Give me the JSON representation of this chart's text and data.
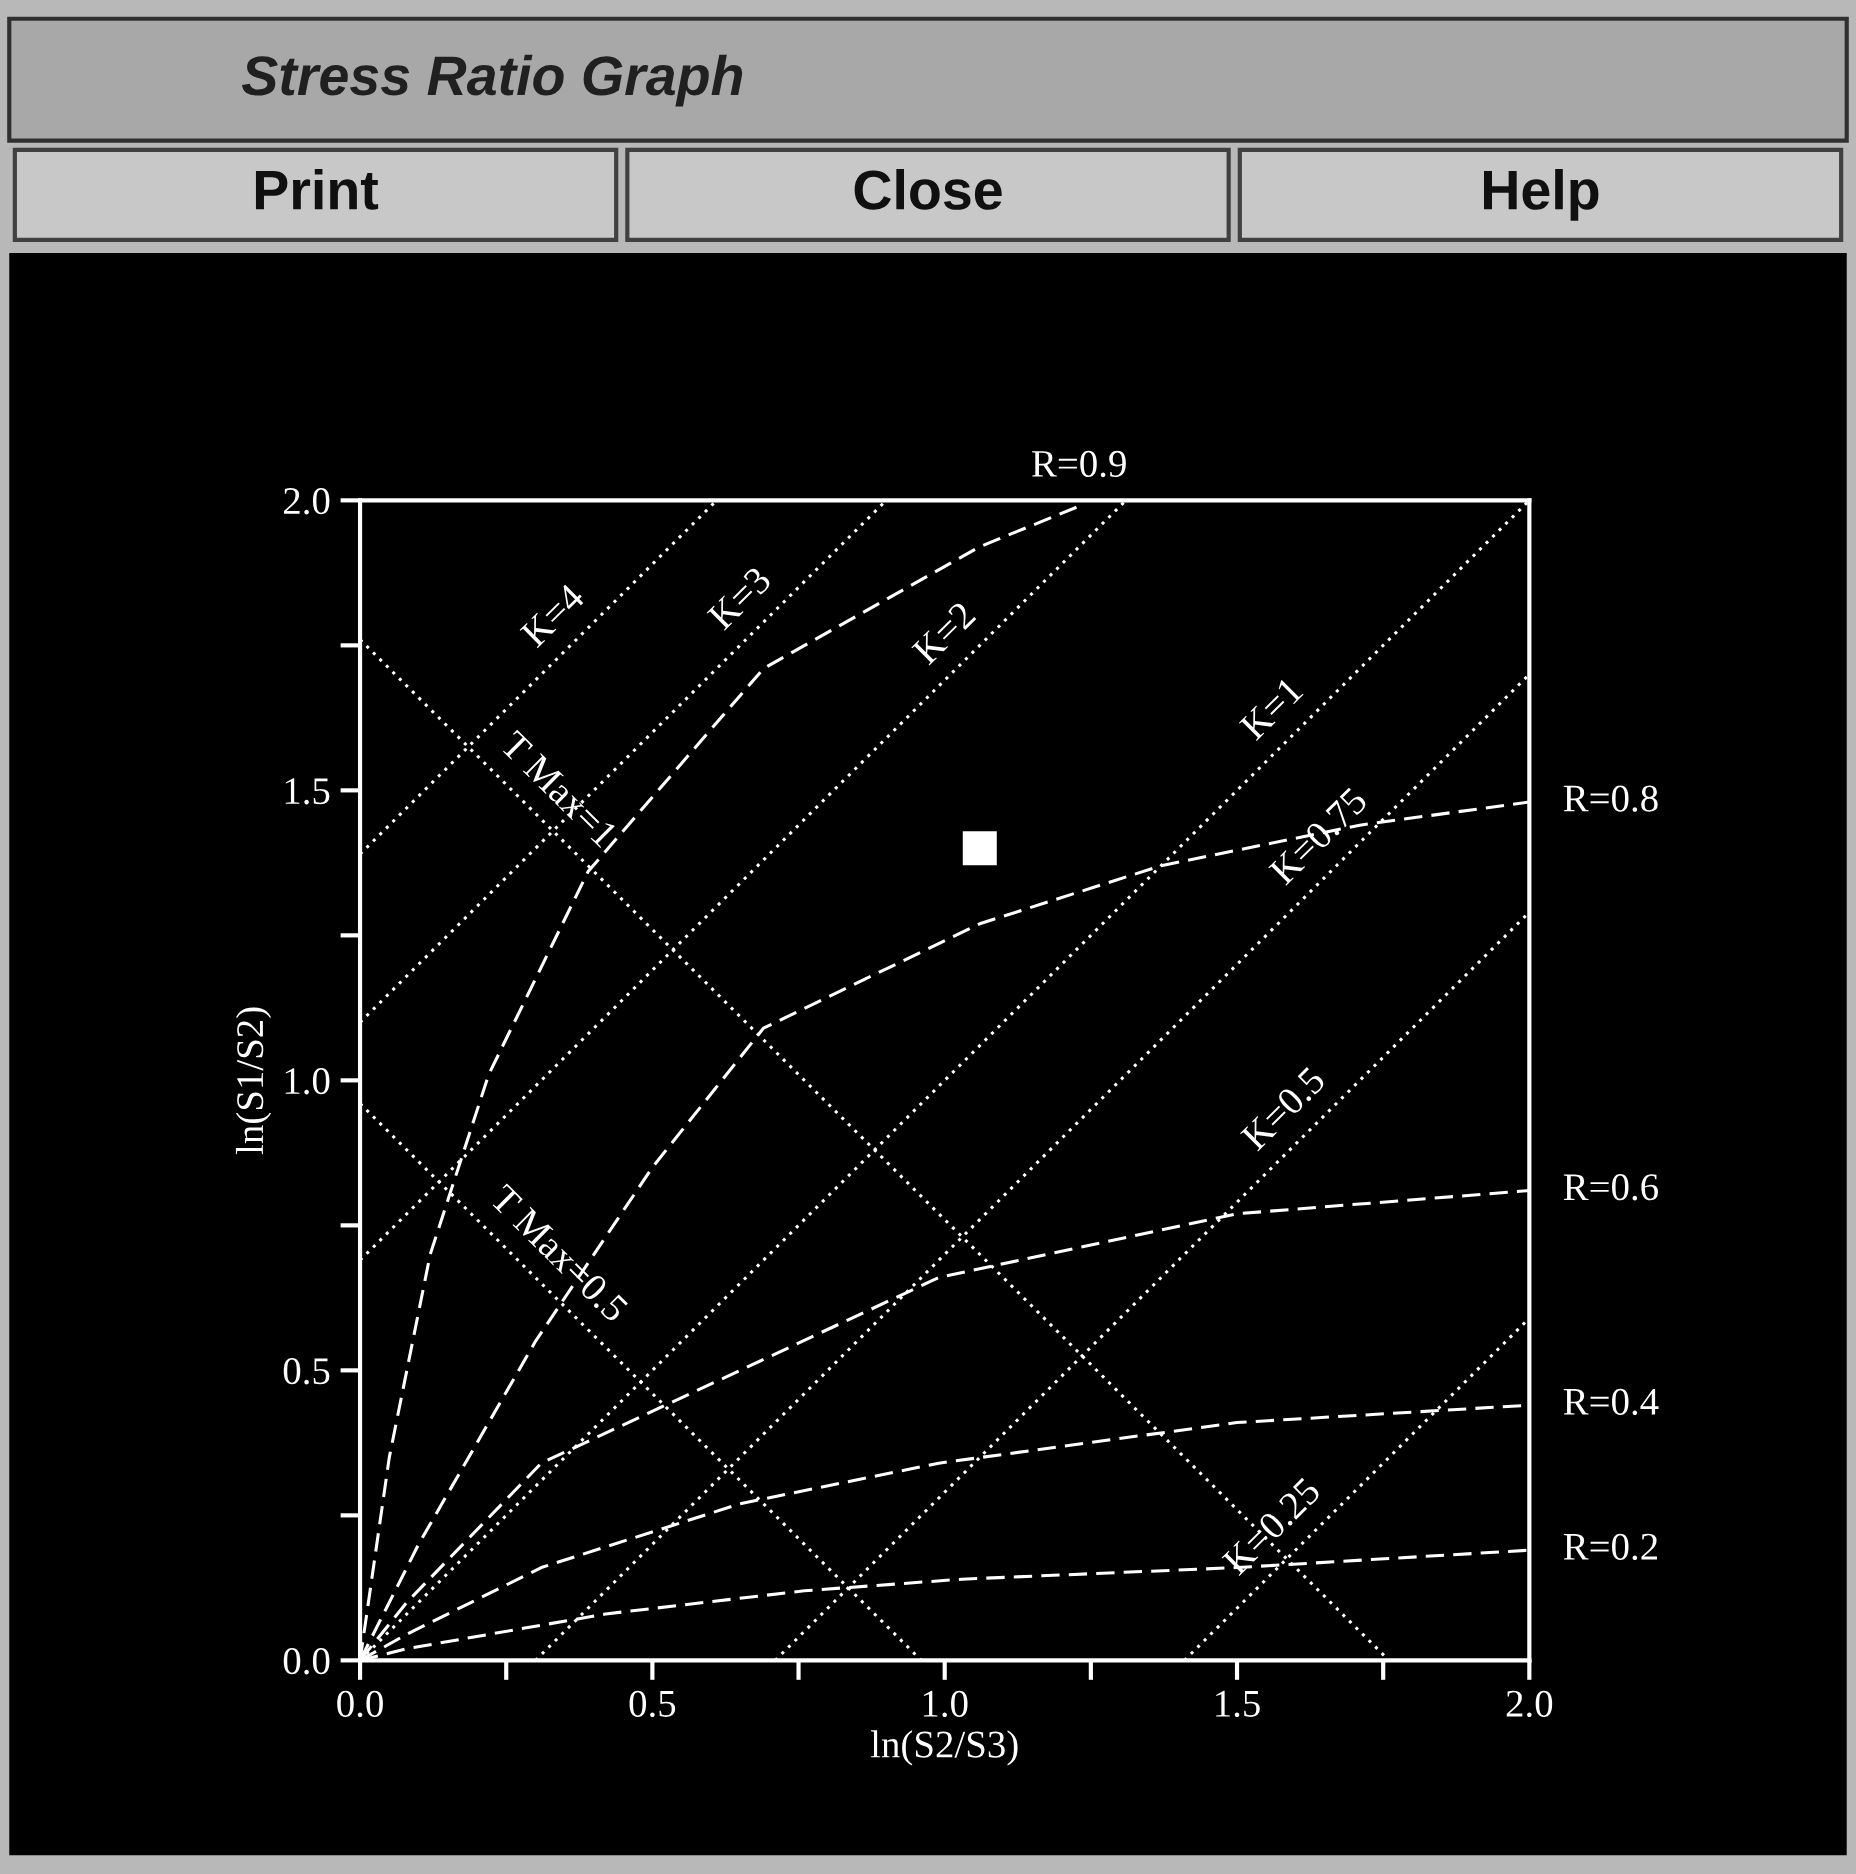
{
  "chart_data": {
    "type": "line",
    "title": "Stress Ratio Graph",
    "xlabel": "ln(S2/S3)",
    "ylabel": "ln(S1/S2)",
    "xlim": [
      0.0,
      2.0
    ],
    "ylim": [
      0.0,
      2.0
    ],
    "xticks": [
      {
        "value": 0,
        "label": "0.0"
      },
      {
        "value": 0.25,
        "label": null
      },
      0.5,
      {
        "value": 0.75,
        "label": null
      },
      {
        "value": 1,
        "label": "1.0"
      },
      {
        "value": 1.25,
        "label": null
      },
      1.5,
      {
        "value": 1.75,
        "label": null
      },
      {
        "value": 2,
        "label": "2.0"
      }
    ],
    "yticks": [
      {
        "value": 0,
        "label": "0.0"
      },
      {
        "value": 0.25,
        "label": null
      },
      0.5,
      {
        "value": 0.75,
        "label": null
      },
      {
        "value": 1,
        "label": "1.0"
      },
      {
        "value": 1.25,
        "label": null
      },
      1.5,
      {
        "value": 1.75,
        "label": null
      },
      {
        "value": 2,
        "label": "2.0"
      }
    ],
    "grid": false,
    "legend": false,
    "series": [
      {
        "color": "#ffffff",
        "line_style": "dashed",
        "x": [
          0,
          0.08,
          0.42,
          0.76,
          1.03,
          1.5,
          2.0
        ],
        "values": [
          0,
          0.02,
          0.08,
          0.12,
          0.14,
          0.16,
          0.19
        ]
      },
      {
        "color": "#ffffff",
        "line_style": "dashed",
        "x": [
          0,
          0.08,
          0.31,
          0.65,
          0.99,
          1.5,
          2.0
        ],
        "values": [
          0,
          0.045,
          0.16,
          0.27,
          0.34,
          0.41,
          0.44
        ]
      },
      {
        "color": "#ffffff",
        "line_style": "dashed",
        "x": [
          0,
          0.08,
          0.31,
          0.65,
          0.99,
          1.5,
          2.0
        ],
        "values": [
          0,
          0.1,
          0.34,
          0.5,
          0.66,
          0.77,
          0.81
        ]
      },
      {
        "color": "#ffffff",
        "line_style": "dashed",
        "x": [
          0,
          0.1,
          0.3,
          0.5,
          0.69,
          1.06,
          1.37,
          1.71,
          2.0
        ],
        "values": [
          0,
          0.2,
          0.55,
          0.85,
          1.09,
          1.27,
          1.37,
          1.44,
          1.48
        ]
      },
      {
        "color": "#ffffff",
        "line_style": "dashed",
        "x": [
          0,
          0.05,
          0.12,
          0.22,
          0.39,
          0.69,
          1.06,
          1.23
        ],
        "values": [
          0,
          0.35,
          0.7,
          1.01,
          1.36,
          1.71,
          1.92,
          1.99
        ]
      },
      {
        "color": "#ffffff",
        "line_style": "dotted",
        "x": [
          0,
          0.61
        ],
        "values": [
          1.39,
          2.0
        ]
      },
      {
        "color": "#ffffff",
        "line_style": "dotted",
        "x": [
          0,
          0.9
        ],
        "values": [
          1.1,
          2.0
        ]
      },
      {
        "color": "#ffffff",
        "line_style": "dotted",
        "x": [
          0,
          1.31
        ],
        "values": [
          0.69,
          2.0
        ]
      },
      {
        "color": "#ffffff",
        "line_style": "dotted",
        "x": [
          0,
          2.0
        ],
        "values": [
          0,
          2.0
        ]
      },
      {
        "color": "#ffffff",
        "line_style": "dotted",
        "x": [
          0.3,
          2.0
        ],
        "values": [
          0,
          1.7
        ]
      },
      {
        "color": "#ffffff",
        "line_style": "dotted",
        "x": [
          0.71,
          2.0
        ],
        "values": [
          0,
          1.29
        ]
      },
      {
        "color": "#ffffff",
        "line_style": "dotted",
        "x": [
          1.41,
          2.0
        ],
        "values": [
          0,
          0.59
        ]
      },
      {
        "color": "#ffffff",
        "line_style": "dotted",
        "x": [
          0,
          1.76
        ],
        "values": [
          1.76,
          0
        ]
      },
      {
        "color": "#ffffff",
        "line_style": "dotted",
        "x": [
          0,
          0.96
        ],
        "values": [
          0.96,
          0
        ]
      },
      {
        "type": "scatter",
        "marker": "square",
        "color": "#ffffff",
        "x": [
          1.06
        ],
        "values": [
          1.4
        ]
      }
    ],
    "annotations": [
      "Print",
      "Close",
      "Help",
      {
        "text": "K=4",
        "x": 0.37,
        "y": 1.76
      },
      {
        "text": "K=3",
        "x": 0.69,
        "y": 1.79
      },
      {
        "text": "K=2",
        "x": 1.04,
        "y": 1.73
      },
      {
        "text": "K=1",
        "x": 1.6,
        "y": 1.6
      },
      {
        "text": "K=0.75",
        "x": 1.68,
        "y": 1.38
      },
      {
        "text": "K=0.5",
        "x": 1.62,
        "y": 0.91
      },
      {
        "text": "K=0.25",
        "x": 1.6,
        "y": 0.19
      },
      {
        "text": "T Max=1",
        "x": 0.3,
        "y": 1.46
      },
      {
        "text": "T Max=0.5",
        "x": 0.3,
        "y": 0.66
      },
      {
        "text": "R=0.9",
        "x": 1.23,
        "y": 1.99
      },
      {
        "text": "R=0.8",
        "x": 2.0,
        "y": 1.48
      },
      {
        "text": "R=0.6",
        "x": 2.0,
        "y": 0.81
      },
      {
        "text": "R=0.4",
        "x": 2.0,
        "y": 0.44
      },
      {
        "text": "R=0.2",
        "x": 2.0,
        "y": 0.19
      }
    ]
  }
}
